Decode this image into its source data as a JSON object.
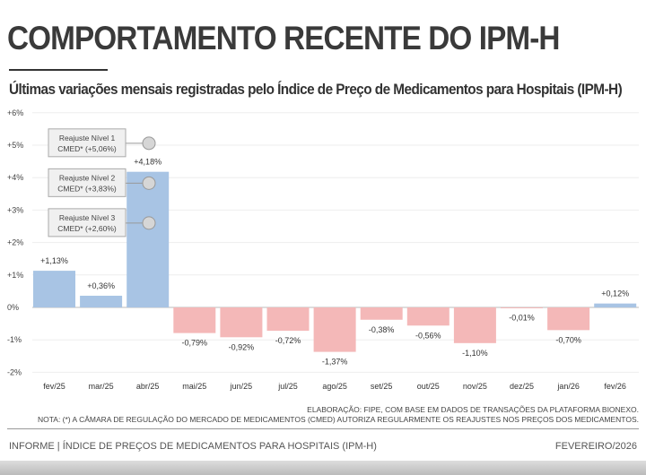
{
  "header": {
    "title": "COMPORTAMENTO RECENTE DO IPM-H",
    "subtitle": "Últimas variações mensais registradas pelo Índice de Preço de Medicamentos para Hospitais (IPM-H)"
  },
  "chart_data": {
    "type": "bar",
    "categories": [
      "fev/25",
      "mar/25",
      "abr/25",
      "mai/25",
      "jun/25",
      "jul/25",
      "ago/25",
      "set/25",
      "out/25",
      "nov/25",
      "dez/25",
      "jan/26",
      "fev/26"
    ],
    "values": [
      1.13,
      0.36,
      4.18,
      -0.79,
      -0.92,
      -0.72,
      -1.37,
      -0.38,
      -0.56,
      -1.1,
      -0.01,
      -0.7,
      0.12
    ],
    "data_labels": [
      "+1,13%",
      "+0,36%",
      "+4,18%",
      "-0,79%",
      "-0,92%",
      "-0,72%",
      "-1,37%",
      "-0,38%",
      "-0,56%",
      "-1,10%",
      "-0,01%",
      "-0,70%",
      "+0,12%"
    ],
    "ylim": [
      -2,
      6
    ],
    "yticks": [
      6,
      5,
      4,
      3,
      2,
      1,
      0,
      -1,
      -2
    ],
    "ytick_labels": [
      "+6%",
      "+5%",
      "+4%",
      "+3%",
      "+2%",
      "+1%",
      "0%",
      "-1%",
      "-2%"
    ],
    "colors": {
      "positive": "#a8c4e4",
      "negative": "#f4b8b8"
    },
    "annotations": [
      {
        "line1": "Reajuste Nível 1",
        "line2": "CMED* (+5,06%)",
        "value": 5.06
      },
      {
        "line1": "Reajuste Nível 2",
        "line2": "CMED* (+3,83%)",
        "value": 3.83
      },
      {
        "line1": "Reajuste Nível 3",
        "line2": "CMED* (+2,60%)",
        "value": 2.6
      }
    ],
    "grid": true
  },
  "notes": {
    "source": "ELABORAÇÃO: FIPE, COM BASE EM DADOS DE TRANSAÇÕES DA PLATAFORMA BIONEXO.",
    "note": "NOTA: (*) A CÂMARA DE REGULAÇÃO DO MERCADO DE MEDICAMENTOS (CMED) AUTORIZA REGULARMENTE OS REAJUSTES NOS PREÇOS DOS MEDICAMENTOS."
  },
  "footer": {
    "left": "INFORME | ÍNDICE DE PREÇOS DE MEDICAMENTOS PARA HOSPITAIS (IPM-H)",
    "right": "FEVEREIRO/2026"
  }
}
